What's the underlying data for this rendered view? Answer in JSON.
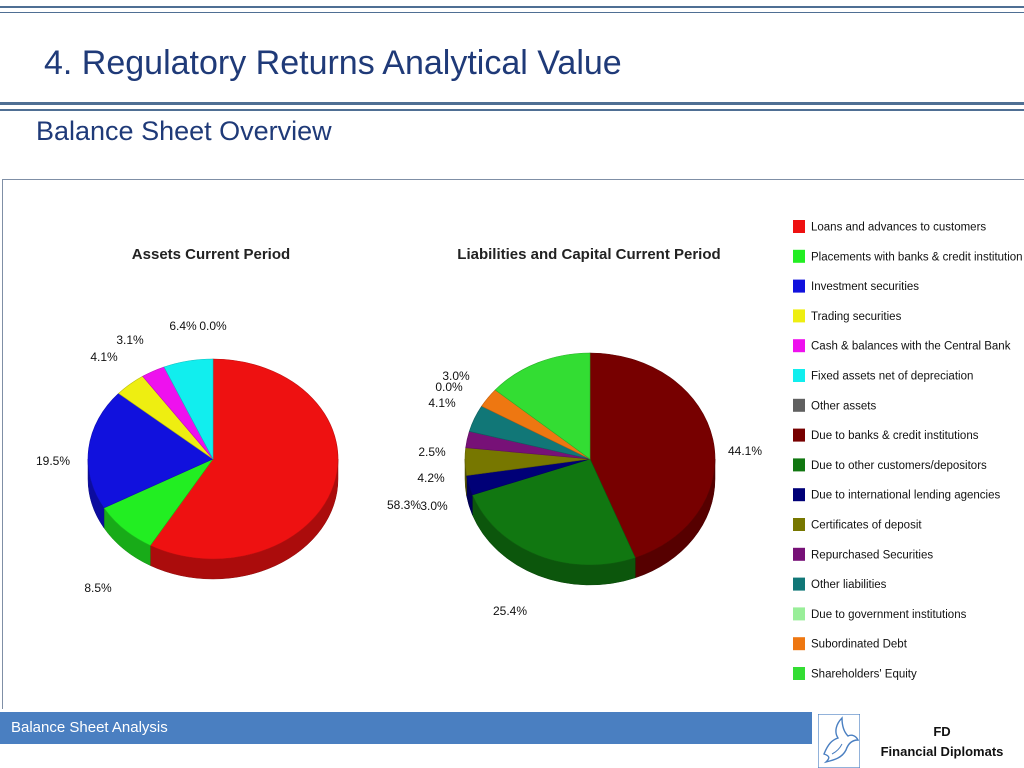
{
  "slide": {
    "title": "4. Regulatory Returns Analytical Value",
    "subtitle": "Balance Sheet Overview",
    "footer": "Balance Sheet Analysis",
    "logo_line1": "FD",
    "logo_line2": "Financial Diplomats"
  },
  "legend": [
    {
      "label": "Loans and advances to customers",
      "color": "#ee1111"
    },
    {
      "label": "Placements with banks & credit institutions",
      "color": "#22ee22"
    },
    {
      "label": "Investment securities",
      "color": "#1111dd"
    },
    {
      "label": "Trading securities",
      "color": "#eeee11"
    },
    {
      "label": "Cash & balances with the Central Bank",
      "color": "#ee11ee"
    },
    {
      "label": "Fixed assets net of depreciation",
      "color": "#11eeee"
    },
    {
      "label": "Other assets",
      "color": "#606060"
    },
    {
      "label": "Due to banks & credit institutions",
      "color": "#770000"
    },
    {
      "label": "Due to other customers/depositors",
      "color": "#117711"
    },
    {
      "label": "Due to international lending agencies",
      "color": "#000077"
    },
    {
      "label": "Certificates of deposit",
      "color": "#777700"
    },
    {
      "label": "Repurchased Securities",
      "color": "#771177"
    },
    {
      "label": "Other liabilities",
      "color": "#117777"
    },
    {
      "label": "Due to government institutions",
      "color": "#99ee99"
    },
    {
      "label": "Subordinated Debt",
      "color": "#ee7711"
    },
    {
      "label": "Shareholders' Equity",
      "color": "#33dd33"
    }
  ],
  "chart_data": [
    {
      "type": "pie",
      "title": "Assets Current Period",
      "slices": [
        {
          "name": "Loans and advances to customers",
          "value": 58.3,
          "label": "58.3%",
          "color": "#ee1111"
        },
        {
          "name": "Placements with banks & credit institutions",
          "value": 8.5,
          "label": "8.5%",
          "color": "#22ee22"
        },
        {
          "name": "Investment securities",
          "value": 19.5,
          "label": "19.5%",
          "color": "#1111dd"
        },
        {
          "name": "Trading securities",
          "value": 4.1,
          "label": "4.1%",
          "color": "#eeee11"
        },
        {
          "name": "Cash & balances with the Central Bank",
          "value": 3.1,
          "label": "3.1%",
          "color": "#ee11ee"
        },
        {
          "name": "Fixed assets net of depreciation",
          "value": 6.4,
          "label": "6.4%",
          "color": "#11eeee"
        },
        {
          "name": "Other assets",
          "value": 0.0,
          "label": "0.0%",
          "color": "#606060"
        }
      ]
    },
    {
      "type": "pie",
      "title": "Liabilities and Capital Current Period",
      "slices": [
        {
          "name": "Due to banks & credit institutions",
          "value": 44.1,
          "label": "44.1%",
          "color": "#770000"
        },
        {
          "name": "Due to other customers/depositors",
          "value": 25.4,
          "label": "25.4%",
          "color": "#117711"
        },
        {
          "name": "Due to international lending agencies",
          "value": 3.0,
          "label": "3.0%",
          "color": "#000077"
        },
        {
          "name": "Certificates of deposit",
          "value": 4.2,
          "label": "4.2%",
          "color": "#777700"
        },
        {
          "name": "Repurchased Securities",
          "value": 2.5,
          "label": "2.5%",
          "color": "#771177"
        },
        {
          "name": "Other liabilities",
          "value": 4.1,
          "label": "4.1%",
          "color": "#117777"
        },
        {
          "name": "Due to government institutions",
          "value": 0.0,
          "label": "0.0%",
          "color": "#99ee99"
        },
        {
          "name": "Subordinated Debt",
          "value": 3.0,
          "label": "3.0%",
          "color": "#ee7711"
        },
        {
          "name": "Shareholders' Equity",
          "value": 13.7,
          "color": "#33dd33"
        }
      ]
    }
  ]
}
